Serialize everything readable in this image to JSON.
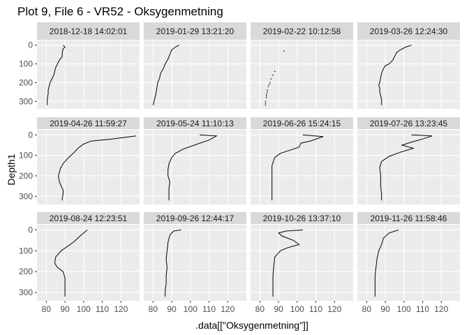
{
  "chart_data": {
    "type": "line",
    "title": "Plot 9, File 6 - VR52  -  Oksygenmetning",
    "xlabel": ".data[[\"Oksygenmetning\"]]",
    "ylabel": "Depth1",
    "xlim": [
      75,
      130
    ],
    "ylim": [
      340,
      -25
    ],
    "xticks": [
      80,
      90,
      100,
      110,
      120
    ],
    "yticks": [
      0,
      100,
      200,
      300
    ],
    "y_reversed": true,
    "grid": true,
    "facets": [
      {
        "label": "2018-12-18 14:02:01",
        "x": [
          89,
          90,
          89,
          88.5,
          88.5,
          87,
          86,
          85,
          84.5,
          84,
          83,
          82,
          81.5,
          81,
          81,
          80.5,
          80.5
        ],
        "y": [
          0,
          10,
          20,
          40,
          60,
          80,
          100,
          120,
          140,
          160,
          180,
          200,
          220,
          240,
          260,
          290,
          320
        ]
      },
      {
        "label": "2019-01-29 13:21:20",
        "x": [
          94,
          92,
          90,
          89,
          88,
          86.5,
          85.5,
          84,
          83.5,
          82.5,
          82,
          81.5,
          81,
          80.5,
          80
        ],
        "y": [
          0,
          10,
          25,
          50,
          75,
          100,
          125,
          150,
          175,
          200,
          230,
          260,
          280,
          300,
          320
        ]
      },
      {
        "label": "2019-02-22 10:12:58",
        "style": "points",
        "x": [
          93,
          88,
          87,
          86,
          85.5,
          85,
          84.5,
          84,
          84,
          83.5,
          83.5,
          83.5,
          83,
          83,
          83
        ],
        "y": [
          30,
          140,
          160,
          180,
          200,
          210,
          220,
          240,
          250,
          260,
          270,
          280,
          300,
          310,
          320
        ]
      },
      {
        "label": "2019-03-26 12:24:30",
        "x": [
          104,
          101,
          98,
          96,
          95,
          94,
          92,
          90,
          89,
          88,
          87.5,
          87,
          86.5,
          87,
          87,
          87.5,
          88,
          88,
          88
        ],
        "y": [
          0,
          10,
          25,
          40,
          60,
          80,
          100,
          110,
          125,
          150,
          175,
          200,
          215,
          230,
          250,
          270,
          290,
          305,
          320
        ]
      },
      {
        "label": "2019-04-26 11:59:27",
        "x": [
          128,
          115,
          104,
          100,
          97,
          95,
          92,
          89,
          87.5,
          86.5,
          87,
          88,
          89,
          89,
          88.5,
          88.5
        ],
        "y": [
          5,
          20,
          30,
          45,
          65,
          85,
          110,
          140,
          165,
          200,
          230,
          250,
          270,
          290,
          310,
          320
        ]
      },
      {
        "label": "2019-05-24 11:10:13",
        "x": [
          105,
          114,
          110,
          102,
          96,
          92,
          90,
          88.5,
          88,
          88,
          89,
          88.5,
          88.5,
          88.5
        ],
        "y": [
          0,
          5,
          25,
          50,
          70,
          90,
          110,
          140,
          170,
          200,
          230,
          260,
          290,
          320
        ]
      },
      {
        "label": "2019-06-26 15:24:15",
        "x": [
          103,
          114,
          107,
          102,
          101,
          96,
          91,
          88,
          86.5,
          86.5,
          86.5,
          86.5,
          86.5
        ],
        "y": [
          0,
          8,
          30,
          40,
          60,
          75,
          90,
          110,
          150,
          200,
          250,
          290,
          320
        ]
      },
      {
        "label": "2019-07-26 13:23:45",
        "x": [
          104,
          115,
          110,
          104,
          99,
          105,
          98,
          92,
          88,
          87,
          87.5,
          87.5,
          88,
          88
        ],
        "y": [
          0,
          5,
          20,
          35,
          50,
          65,
          85,
          105,
          130,
          160,
          200,
          250,
          290,
          320
        ]
      },
      {
        "label": "2019-08-24 12:23:51",
        "x": [
          102,
          100,
          98,
          95,
          92,
          88,
          85,
          84.5,
          86,
          89,
          90,
          90,
          90,
          90
        ],
        "y": [
          0,
          15,
          30,
          55,
          75,
          100,
          130,
          160,
          180,
          200,
          230,
          260,
          290,
          320
        ]
      },
      {
        "label": "2019-09-26 12:44:17",
        "x": [
          95,
          91,
          89,
          88,
          87.5,
          87,
          87.5,
          87,
          87,
          86.5,
          86.5
        ],
        "y": [
          0,
          5,
          25,
          60,
          100,
          140,
          180,
          220,
          260,
          290,
          320
        ]
      },
      {
        "label": "2019-10-26 13:37:10",
        "x": [
          103,
          94,
          90,
          92,
          98,
          101,
          95,
          91,
          88,
          87.5,
          87,
          87,
          87
        ],
        "y": [
          0,
          5,
          15,
          30,
          50,
          70,
          85,
          100,
          130,
          170,
          220,
          270,
          320
        ]
      },
      {
        "label": "2019-11-26 11:58:46",
        "x": [
          97,
          92,
          89,
          88,
          86.5,
          85.5,
          85,
          84.5,
          84.5,
          84.5
        ],
        "y": [
          0,
          15,
          40,
          70,
          100,
          140,
          180,
          220,
          270,
          320
        ]
      }
    ]
  }
}
